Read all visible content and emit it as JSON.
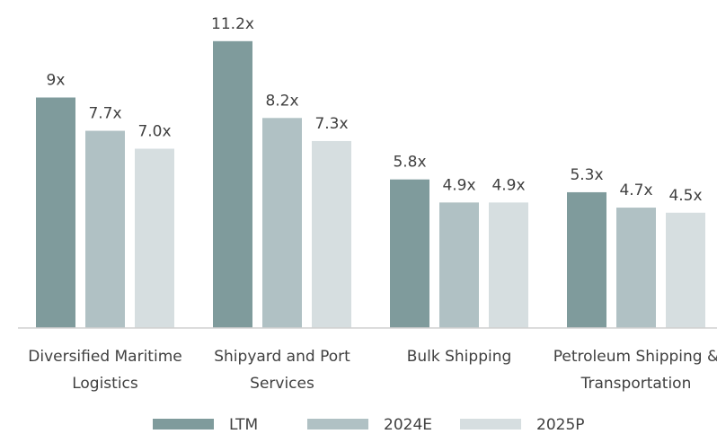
{
  "chart_data": {
    "type": "bar",
    "categories": [
      "Diversified Maritime Logistics",
      "Shipyard and Port Services",
      "Bulk Shipping",
      "Petroleum Shipping & Transportation"
    ],
    "series": [
      {
        "name": "LTM",
        "color": "#7f9b9c",
        "values": [
          9,
          11.2,
          5.8,
          5.3
        ],
        "value_labels": [
          "9x",
          "11.2x",
          "5.8x",
          "5.3x"
        ]
      },
      {
        "name": "2024E",
        "color": "#b0c1c4",
        "values": [
          7.7,
          8.2,
          4.9,
          4.7
        ],
        "value_labels": [
          "7.7x",
          "8.2x",
          "4.9x",
          "4.7x"
        ]
      },
      {
        "name": "2025P",
        "color": "#d6dee0",
        "values": [
          7.0,
          7.3,
          4.9,
          4.5
        ],
        "value_labels": [
          "7.0x",
          "7.3x",
          "4.9x",
          "4.5x"
        ]
      }
    ],
    "ylim": [
      0,
      12
    ],
    "legend": "bottom"
  }
}
